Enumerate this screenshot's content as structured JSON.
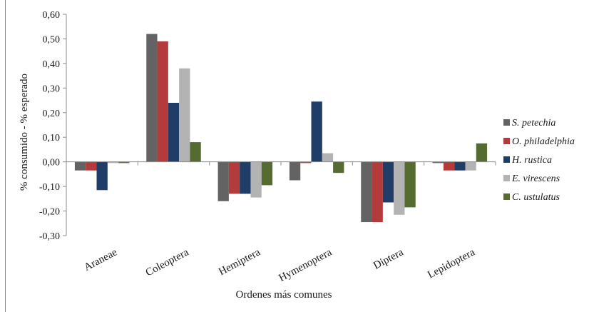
{
  "chart_data": {
    "type": "bar",
    "categories": [
      "Araneae",
      "Coleoptera",
      "Hemiptera",
      "Hymenoptera",
      "Diptera",
      "Lepidoptera"
    ],
    "series": [
      {
        "name": "S. petechia",
        "color": "#636363",
        "values": [
          -0.035,
          0.52,
          -0.16,
          -0.075,
          -0.245,
          -0.005
        ]
      },
      {
        "name": "O. philadelphia",
        "color": "#b33b3b",
        "values": [
          -0.035,
          0.49,
          -0.13,
          -0.005,
          -0.245,
          -0.035
        ]
      },
      {
        "name": "H. rustica",
        "color": "#1f3d66",
        "values": [
          -0.115,
          0.24,
          -0.13,
          0.245,
          -0.165,
          -0.035
        ]
      },
      {
        "name": "E. virescens",
        "color": "#b3b3b3",
        "values": [
          -0.005,
          0.38,
          -0.145,
          0.035,
          -0.215,
          -0.035
        ]
      },
      {
        "name": "C. ustulatus",
        "color": "#556b2f",
        "values": [
          -0.005,
          0.08,
          -0.095,
          -0.045,
          -0.185,
          0.075
        ]
      }
    ],
    "ylim": [
      -0.3,
      0.6
    ],
    "yticks": [
      "-0,30",
      "-0,20",
      "-0,10",
      "0,00",
      "0,10",
      "0,20",
      "0,30",
      "0,40",
      "0,50",
      "0,60"
    ],
    "ylabel": "% consumido - % esperado",
    "xlabel": "Ordenes más comunes",
    "legend_position": "right",
    "grid": false
  }
}
